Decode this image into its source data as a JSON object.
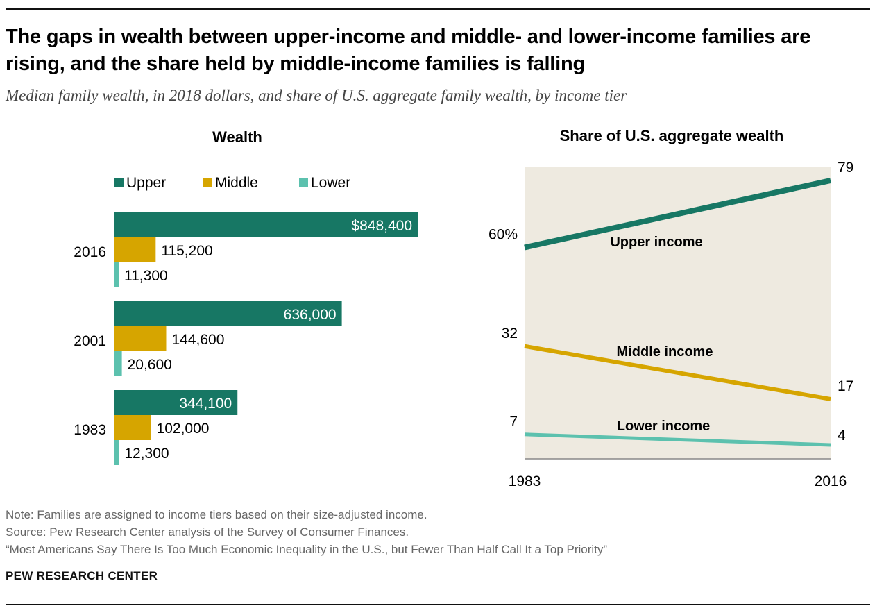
{
  "title": "The gaps in wealth between upper-income and middle- and lower-income families are rising, and the share held by middle-income families is falling",
  "subtitle": "Median family wealth, in 2018 dollars, and share of U.S. aggregate family wealth, by income tier",
  "notes": {
    "note": "Note: Families are assigned to income tiers based on their size-adjusted income.",
    "source": "Source: Pew Research Center analysis of the Survey of Consumer Finances.",
    "report": "“Most Americans Say There Is Too Much Economic Inequality in the U.S., but Fewer Than Half Call It a Top Priority”"
  },
  "brand": "PEW RESEARCH CENTER",
  "colors": {
    "upper": "#177764",
    "middle": "#D6A500",
    "lower": "#5CC1AE",
    "plot_bg": "#EEEAE0"
  },
  "chart_data": [
    {
      "type": "bar",
      "orientation": "horizontal",
      "title": "Wealth",
      "legend": [
        "Upper",
        "Middle",
        "Lower"
      ],
      "legend_position": "top-left",
      "categories": [
        "2016",
        "2001",
        "1983"
      ],
      "series": [
        {
          "name": "Upper",
          "values": [
            848400,
            636000,
            344100
          ],
          "labels": [
            "$848,400",
            "636,000",
            "344,100"
          ]
        },
        {
          "name": "Middle",
          "values": [
            115200,
            144600,
            102000
          ],
          "labels": [
            "115,200",
            "144,600",
            "102,000"
          ]
        },
        {
          "name": "Lower",
          "values": [
            11300,
            20600,
            12300
          ],
          "labels": [
            "11,300",
            "20,600",
            "12,300"
          ]
        }
      ],
      "xlim": [
        0,
        848400
      ],
      "grid": false
    },
    {
      "type": "line",
      "title": "Share of U.S. aggregate wealth",
      "x": [
        "1983",
        "2016"
      ],
      "series": [
        {
          "name": "Upper income",
          "values": [
            60,
            79
          ],
          "labels": [
            "60%",
            "79"
          ]
        },
        {
          "name": "Middle income",
          "values": [
            32,
            17
          ],
          "labels": [
            "32",
            "17"
          ]
        },
        {
          "name": "Lower income",
          "values": [
            7,
            4
          ],
          "labels": [
            "7",
            "4"
          ]
        }
      ],
      "ylim": [
        0,
        79
      ],
      "grid": false
    }
  ]
}
